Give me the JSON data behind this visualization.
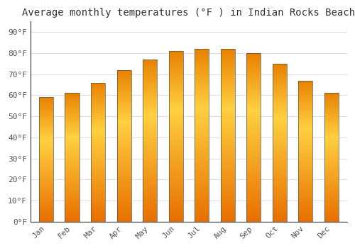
{
  "title": "Average monthly temperatures (°F ) in Indian Rocks Beach",
  "months": [
    "Jan",
    "Feb",
    "Mar",
    "Apr",
    "May",
    "Jun",
    "Jul",
    "Aug",
    "Sep",
    "Oct",
    "Nov",
    "Dec"
  ],
  "values": [
    59,
    61,
    66,
    72,
    77,
    81,
    82,
    82,
    80,
    75,
    67,
    61
  ],
  "bar_color_bottom": "#E87000",
  "bar_color_mid": "#FFA500",
  "bar_color_top": "#FFD040",
  "bar_edge_color": "#555555",
  "background_color": "#FFFFFF",
  "grid_color": "#E0E0E8",
  "title_fontsize": 10,
  "tick_fontsize": 8,
  "ytick_labels": [
    "0°F",
    "10°F",
    "20°F",
    "30°F",
    "40°F",
    "50°F",
    "60°F",
    "70°F",
    "80°F",
    "90°F"
  ],
  "ytick_values": [
    0,
    10,
    20,
    30,
    40,
    50,
    60,
    70,
    80,
    90
  ],
  "ylim": [
    0,
    95
  ],
  "font_family": "monospace",
  "bar_width": 0.55
}
